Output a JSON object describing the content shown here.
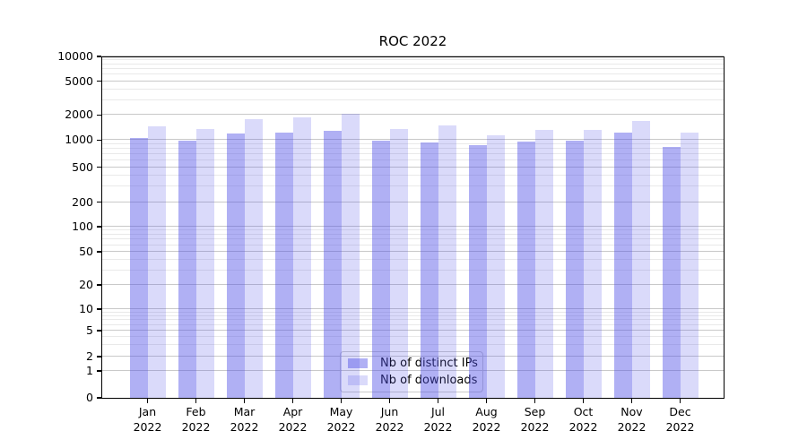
{
  "title": "ROC 2022",
  "chart_data": {
    "type": "bar",
    "categories": [
      "Jan 2022",
      "Feb 2022",
      "Mar 2022",
      "Apr 2022",
      "May 2022",
      "Jun 2022",
      "Jul 2022",
      "Aug 2022",
      "Sep 2022",
      "Oct 2022",
      "Nov 2022",
      "Dec 2022"
    ],
    "series": [
      {
        "name": "Nb of distinct IPs",
        "color": "rgba(80,80,230,0.45)",
        "color_hex_on_white": "#b0b0f3",
        "values": [
          1060,
          975,
          1200,
          1240,
          1280,
          975,
          945,
          870,
          965,
          990,
          1240,
          840
        ]
      },
      {
        "name": "Nb of downloads",
        "color": "rgba(80,80,230,0.21)",
        "color_hex_on_white": "#dcdcf9",
        "values": [
          1460,
          1350,
          1780,
          1880,
          2080,
          1370,
          1510,
          1150,
          1320,
          1330,
          1710,
          1240
        ]
      }
    ],
    "title": "ROC 2022",
    "xlabel": "",
    "ylabel": "",
    "yscale": "symlog",
    "y_ticks": [
      0,
      1,
      2,
      5,
      10,
      20,
      50,
      100,
      200,
      500,
      1000,
      2000,
      5000,
      10000
    ],
    "ylim": [
      0,
      10000
    ],
    "grid": "both",
    "legend_position": "lower center",
    "colors": {
      "axis": "#000000",
      "major_grid": "#c9c9c9",
      "minor_grid": "#e9e9e9",
      "legend_border": "#cccccc"
    }
  }
}
